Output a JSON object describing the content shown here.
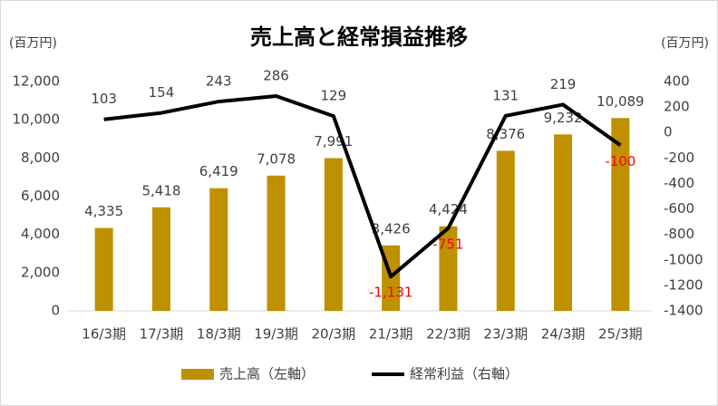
{
  "chart_data": {
    "type": "bar_line",
    "title": "売上高と経常損益推移",
    "y_label": "(百万円)",
    "y2_label": "(百万円)",
    "categories": [
      "16/3期",
      "17/3期",
      "18/3期",
      "19/3期",
      "20/3期",
      "21/3期",
      "22/3期",
      "23/3期",
      "24/3期",
      "25/3期"
    ],
    "series": [
      {
        "name": "売上高（左軸）",
        "type": "bar",
        "color": "#bf9000",
        "values": [
          4335,
          5418,
          6419,
          7078,
          7991,
          3426,
          4424,
          8376,
          9232,
          10089
        ],
        "value_labels": [
          "4,335",
          "5,418",
          "6,419",
          "7,078",
          "7,991",
          "3,426",
          "4,424",
          "8,376",
          "9,232",
          "10,089"
        ]
      },
      {
        "name": "経常利益（右軸）",
        "type": "line",
        "color": "#000000",
        "axis": "y2",
        "values": [
          103,
          154,
          243,
          286,
          129,
          -1131,
          -751,
          131,
          219,
          -100
        ],
        "value_labels": [
          "103",
          "154",
          "243",
          "286",
          "129",
          "-1,131",
          "-751",
          "131",
          "219",
          "-100"
        ]
      }
    ],
    "negative_label_color": "#ff0000",
    "ylim": [
      0,
      12000
    ],
    "yticks": [
      0,
      {
        "value": 2000,
        "label": "2,000"
      },
      {
        "value": 4000,
        "label": "4,000"
      },
      {
        "value": 6000,
        "label": "6,000"
      },
      {
        "value": 8000,
        "label": "8,000"
      },
      {
        "value": 10000,
        "label": "10,000"
      },
      {
        "value": 12000,
        "label": "12,000"
      }
    ],
    "y2lim": [
      -1400,
      400
    ],
    "y2ticks": [
      -1400,
      -1200,
      -1000,
      -800,
      -600,
      -400,
      -200,
      0,
      200,
      400
    ],
    "legend": "bottom"
  }
}
